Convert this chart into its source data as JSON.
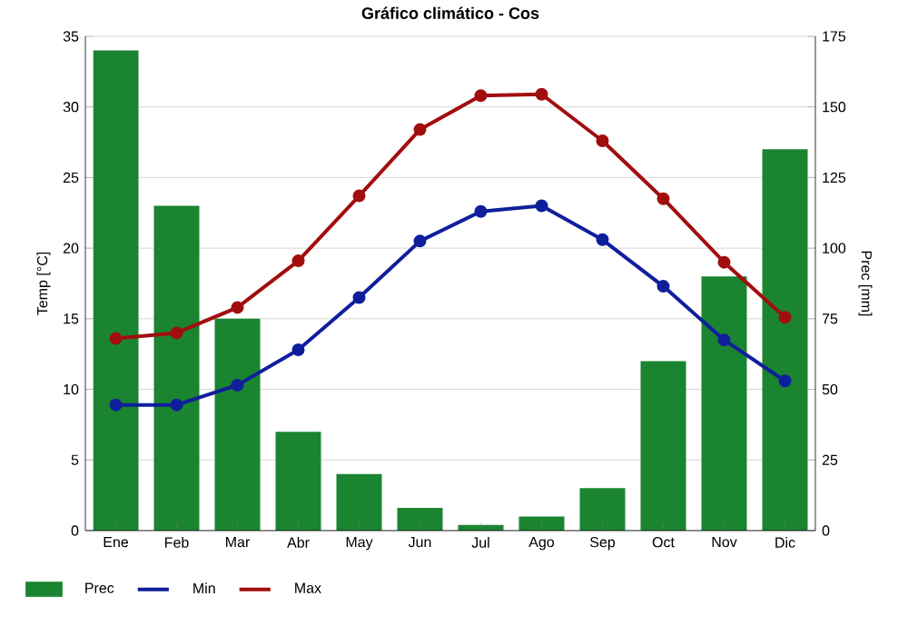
{
  "chart_data": {
    "type": "line",
    "title": "Gráfico climático - Cos",
    "ylabel": "Temp [°C]",
    "y2label": "Prec [mm]",
    "categories": [
      "Ene",
      "Feb",
      "Mar",
      "Abr",
      "May",
      "Jun",
      "Jul",
      "Ago",
      "Sep",
      "Oct",
      "Nov",
      "Dic"
    ],
    "ylim": [
      0,
      35
    ],
    "yticks": [
      0,
      5,
      10,
      15,
      20,
      25,
      30,
      35
    ],
    "y2lim": [
      0,
      175
    ],
    "y2ticks": [
      0,
      25,
      50,
      75,
      100,
      125,
      150,
      175
    ],
    "grid": "y",
    "legend": "bottom",
    "marker": "circle",
    "series": [
      {
        "name": "Prec",
        "type": "bar",
        "axis": "y2",
        "color": "#1b8430",
        "values": [
          170,
          115,
          75,
          35,
          20,
          8,
          2,
          5,
          15,
          60,
          90,
          135
        ]
      },
      {
        "name": "Min",
        "color": "#0f1f9c",
        "values": [
          8.9,
          8.9,
          10.3,
          12.8,
          16.5,
          20.5,
          22.6,
          23.0,
          20.6,
          17.3,
          13.5,
          10.6
        ]
      },
      {
        "name": "Max",
        "color": "#a10e0e",
        "values": [
          13.6,
          14.0,
          15.8,
          19.1,
          23.7,
          28.4,
          30.8,
          30.9,
          27.6,
          23.5,
          19.0,
          15.1
        ]
      }
    ]
  }
}
